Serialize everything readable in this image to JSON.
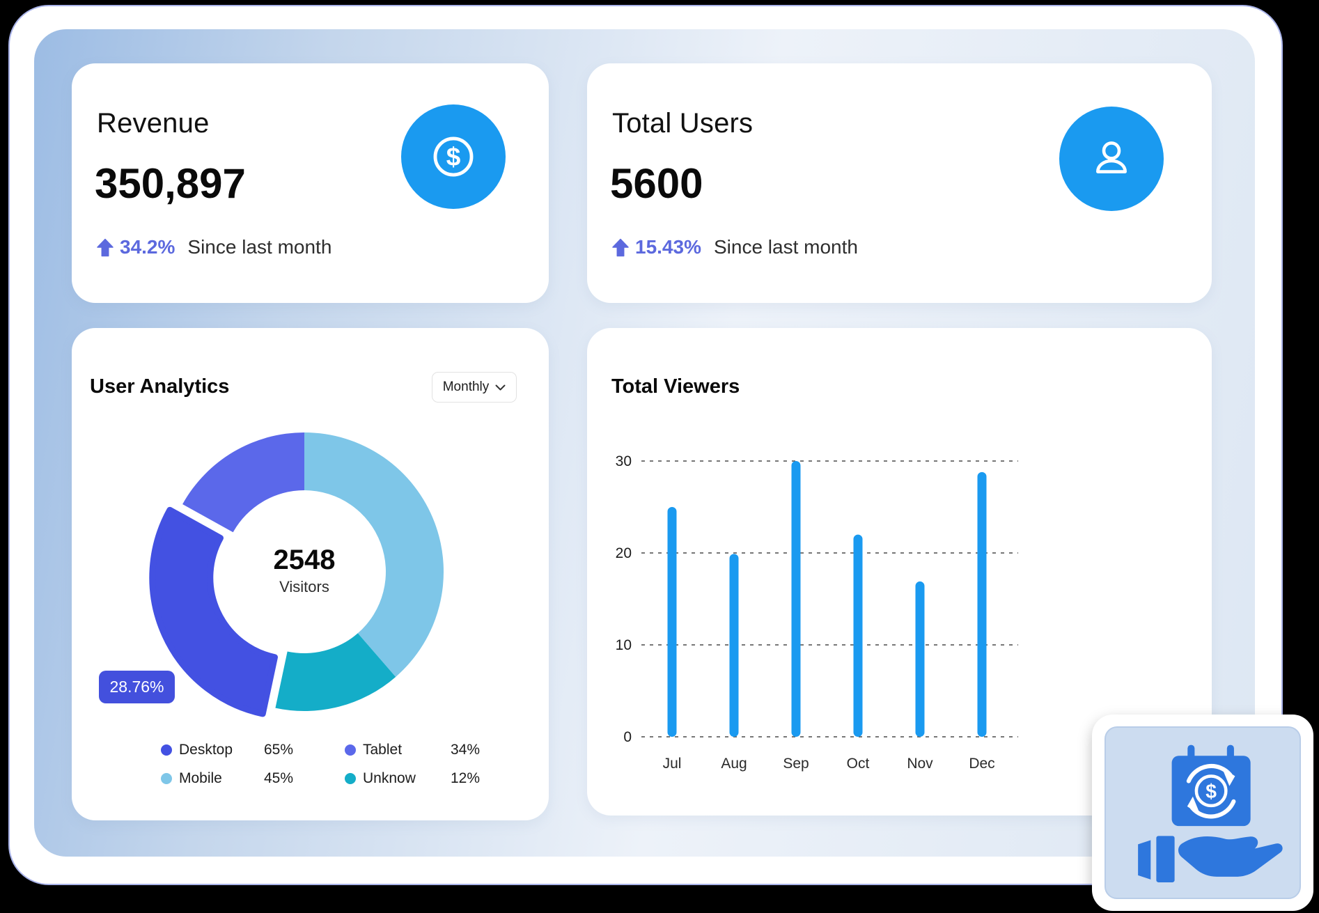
{
  "colors": {
    "page_background": "#000000",
    "window_border": "#a8b2e8",
    "window_gradient_start": "#9cbce4",
    "window_gradient_end": "#dde7f3",
    "primary_blue": "#1a9af0",
    "accent_purple": "#5c69de",
    "badge_background": "#4350dd",
    "donut_desktop": "#4351e2",
    "donut_tablet": "#5b68ea",
    "donut_mobile": "#7ec6e8",
    "donut_unknow": "#14adc8",
    "promo_icon_blue": "#2e77dd",
    "promo_card_background": "#ccdcf0"
  },
  "cards": {
    "revenue": {
      "title": "Revenue",
      "value": "350,897",
      "delta": "34.2%",
      "note": "Since last month"
    },
    "total_users": {
      "title": "Total Users",
      "value": "5600",
      "delta": "15.43%",
      "note": "Since last month"
    },
    "user_analytics": {
      "title": "User Analytics",
      "period_selector": "Monthly",
      "center_value": "2548",
      "center_label": "Visitors",
      "badge": "28.76%",
      "legend": [
        {
          "name": "Desktop",
          "pct": "65%",
          "color": "#4351e2"
        },
        {
          "name": "Tablet",
          "pct": "34%",
          "color": "#5b68ea"
        },
        {
          "name": "Mobile",
          "pct": "45%",
          "color": "#7ec6e8"
        },
        {
          "name": "Unknow",
          "pct": "12%",
          "color": "#14adc8"
        }
      ]
    },
    "total_viewers": {
      "title": "Total Viewers"
    }
  },
  "chart_data": [
    {
      "type": "pie",
      "subtype": "donut",
      "title": "User Analytics",
      "center_total": 2548,
      "center_label": "Visitors",
      "annotation": "28.76%",
      "start_angle_deg": 0,
      "legend_position": "bottom",
      "segments": [
        {
          "name": "Mobile",
          "value": 45,
          "sweep_deg": 139,
          "color": "#7ec6e8",
          "exploded": false
        },
        {
          "name": "Unknow",
          "value": 12,
          "sweep_deg": 53,
          "color": "#14adc8",
          "exploded": false
        },
        {
          "name": "Desktop",
          "value": 65,
          "sweep_deg": 107,
          "color": "#4351e2",
          "exploded": true
        },
        {
          "name": "Tablet",
          "value": 34,
          "sweep_deg": 61,
          "color": "#5b68ea",
          "exploded": false
        }
      ]
    },
    {
      "type": "bar",
      "title": "Total Viewers",
      "categories": [
        "Jul",
        "Aug",
        "Sep",
        "Oct",
        "Nov",
        "Dec"
      ],
      "values": [
        25,
        19.9,
        30,
        22,
        16.9,
        28.8
      ],
      "xlabel": "",
      "ylabel": "",
      "ylim": [
        0,
        30
      ],
      "yticks": [
        0,
        10,
        20,
        30
      ],
      "grid": "dashed-horizontal",
      "bar_color": "#1a9af0",
      "legend_position": "none"
    }
  ]
}
